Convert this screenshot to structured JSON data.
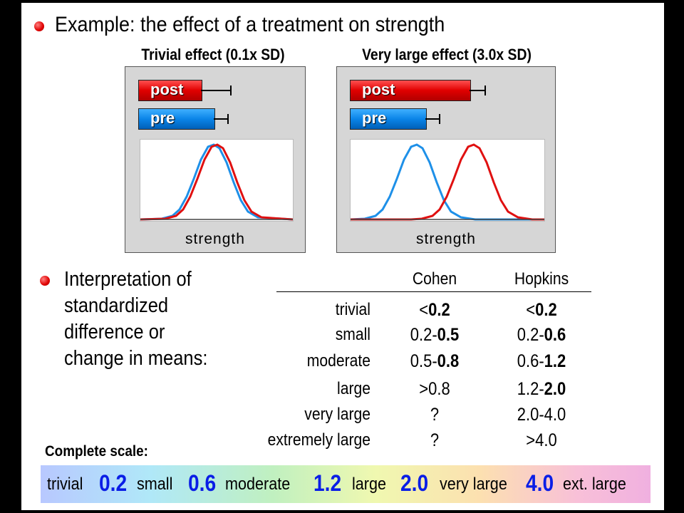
{
  "title": "Example: the effect of a treatment on strength",
  "panels": [
    {
      "title": "Trivial effect (0.1x SD)",
      "post_label": "post",
      "pre_label": "pre",
      "xlabel": "strength"
    },
    {
      "title": "Very large effect (3.0x SD)",
      "post_label": "post",
      "pre_label": "pre",
      "xlabel": "strength"
    }
  ],
  "interpretation": {
    "lines": [
      "Interpretation of",
      "standardized",
      "difference or",
      "change in means:"
    ]
  },
  "table": {
    "headers": [
      "Cohen",
      "Hopkins"
    ],
    "rows": [
      {
        "label": "trivial",
        "cohen_a": "<",
        "cohen_b": "0.2",
        "hopkins_a": "<",
        "hopkins_b": "0.2"
      },
      {
        "label": "small",
        "cohen_a": "0.2-",
        "cohen_b": "0.5",
        "hopkins_a": "0.2-",
        "hopkins_b": "0.6"
      },
      {
        "label": "moderate",
        "cohen_a": "0.5-",
        "cohen_b": "0.8",
        "hopkins_a": "0.6-",
        "hopkins_b": "1.2"
      },
      {
        "label": "large",
        "cohen_a": ">0.8",
        "cohen_b": "",
        "hopkins_a": "1.2-",
        "hopkins_b": "2.0"
      },
      {
        "label": "very large",
        "cohen_a": "?",
        "cohen_b": "",
        "hopkins_a": "2.0-4.0",
        "hopkins_b": ""
      },
      {
        "label": "extremely large",
        "cohen_a": "?",
        "cohen_b": "",
        "hopkins_a": ">4.0",
        "hopkins_b": ""
      }
    ]
  },
  "scale": {
    "label": "Complete scale:",
    "words": [
      "trivial",
      "small",
      "moderate",
      "large",
      "very large",
      "ext. large"
    ],
    "numbers": [
      "0.2",
      "0.6",
      "1.2",
      "2.0",
      "4.0"
    ]
  },
  "colors": {
    "post": "#e00000",
    "pre": "#0a84e8",
    "scale_number": "#0a1ee6",
    "bullet": "#e00000"
  }
}
